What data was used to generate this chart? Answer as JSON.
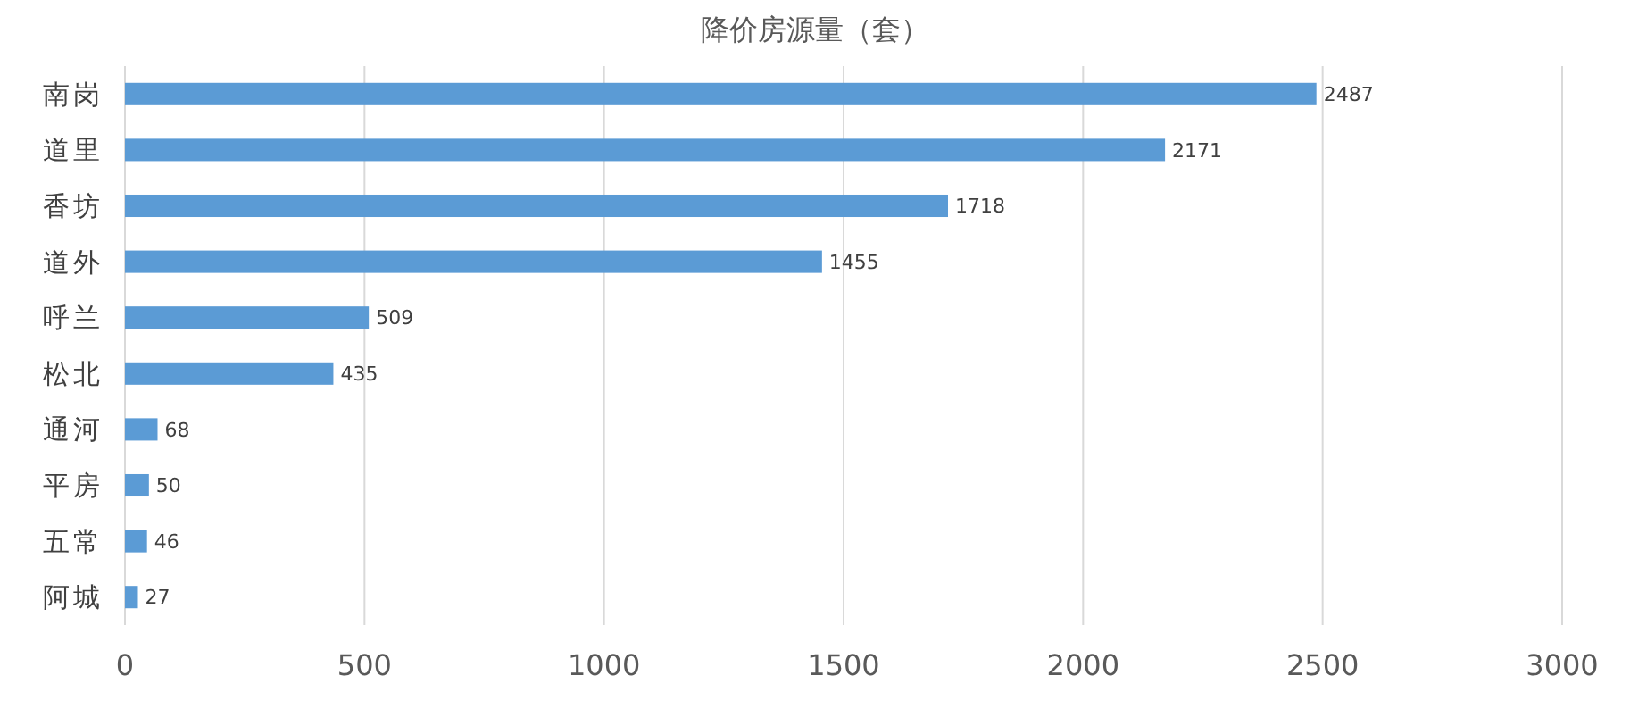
{
  "chart_data": {
    "type": "bar",
    "orientation": "horizontal",
    "title": "降价房源量（套）",
    "categories": [
      "南岗",
      "道里",
      "香坊",
      "道外",
      "呼兰",
      "松北",
      "通河",
      "平房",
      "五常",
      "阿城"
    ],
    "values": [
      2487,
      2171,
      1718,
      1455,
      509,
      435,
      68,
      50,
      46,
      27
    ],
    "color": "#5b9bd5",
    "xlim": [
      0,
      3000
    ],
    "xticks": [
      0,
      500,
      1000,
      1500,
      2000,
      2500,
      3000
    ],
    "grid": "x",
    "data_labels": true
  }
}
